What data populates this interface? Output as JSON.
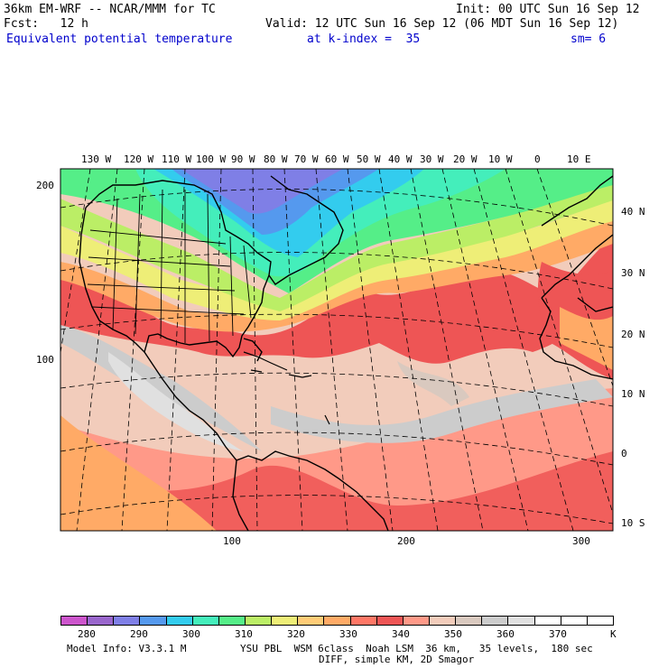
{
  "header": {
    "model_line": "36km EM-WRF -- NCAR/MMM for TC",
    "init": "Init: 00 UTC Sun 16 Sep 12",
    "fcst": "Fcst:   12 h",
    "valid": "Valid: 12 UTC Sun 16 Sep 12 (06 MDT Sun 16 Sep 12)",
    "field": "Equivalent potential temperature",
    "level": "at k-index =  35",
    "smooth": "sm= 6"
  },
  "map": {
    "lon_labels": [
      "130 W",
      "120 W",
      "110 W",
      "100 W",
      "90 W",
      "80 W",
      "70 W",
      "60 W",
      "50 W",
      "40 W",
      "30 W",
      "20 W",
      "10 W",
      "0",
      "10 E"
    ],
    "lat_labels": [
      "40 N",
      "30 N",
      "20 N",
      "10 N",
      "0",
      "10 S"
    ],
    "grid_y_labels": [
      "200",
      "100"
    ],
    "grid_x_labels": [
      "100",
      "200",
      "300"
    ]
  },
  "colorbar": {
    "colors": [
      "#cc55cc",
      "#9966cc",
      "#7f7fe6",
      "#5599ee",
      "#33ccee",
      "#44eebb",
      "#55ee88",
      "#bbee66",
      "#eeee77",
      "#ffcc77",
      "#ffaa66",
      "#ff7766",
      "#ee5555",
      "#ff9988",
      "#f2ccbb",
      "#d9c9bf",
      "#cccccc",
      "#e0e0e0",
      "#ffffff",
      "#ffffff",
      "#ffffff"
    ],
    "labels": [
      "280",
      "290",
      "300",
      "310",
      "320",
      "330",
      "340",
      "350",
      "360",
      "370"
    ],
    "unit": "K"
  },
  "footer": {
    "model_info": "Model Info: V3.3.1 M",
    "physics": "YSU PBL  WSM 6class  Noah LSM  36 km,   35 levels,  180 sec",
    "diff": "DIFF, simple KM, 2D Smagor"
  }
}
